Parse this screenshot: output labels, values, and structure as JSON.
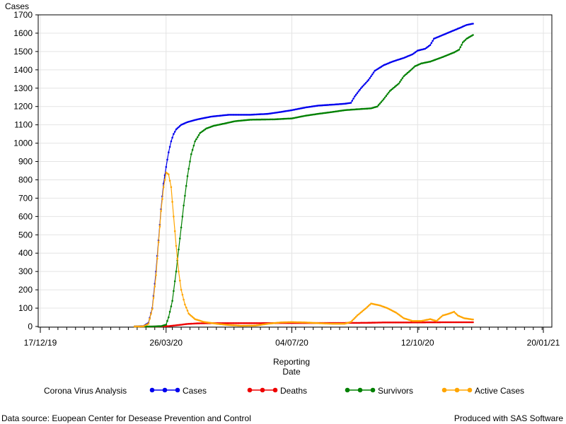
{
  "chart_data": {
    "type": "line",
    "ylabel": "Cases",
    "xlabel_line1": "Reporting",
    "xlabel_line2": "Date",
    "ylim": [
      0,
      1700
    ],
    "yticks": [
      0,
      100,
      200,
      300,
      400,
      500,
      600,
      700,
      800,
      900,
      1000,
      1100,
      1200,
      1300,
      1400,
      1500,
      1600,
      1700
    ],
    "xlim": [
      "2019-12-17",
      "2021-01-20"
    ],
    "xticks": [
      {
        "date": "2019-12-17",
        "label": "17/12/19"
      },
      {
        "date": "2020-03-26",
        "label": "26/03/20"
      },
      {
        "date": "2020-07-04",
        "label": "04/07/20"
      },
      {
        "date": "2020-10-12",
        "label": "12/10/20"
      },
      {
        "date": "2021-01-20",
        "label": "20/01/21"
      }
    ],
    "grid": true,
    "legend_title": "Corona Virus Analysis",
    "legend_position": "bottom",
    "series": [
      {
        "name": "Cases",
        "color": "#0000ee",
        "points": [
          [
            "2020-03-01",
            0
          ],
          [
            "2020-03-08",
            2
          ],
          [
            "2020-03-12",
            20
          ],
          [
            "2020-03-15",
            100
          ],
          [
            "2020-03-18",
            300
          ],
          [
            "2020-03-20",
            470
          ],
          [
            "2020-03-22",
            640
          ],
          [
            "2020-03-24",
            780
          ],
          [
            "2020-03-26",
            870
          ],
          [
            "2020-03-28",
            950
          ],
          [
            "2020-03-30",
            1010
          ],
          [
            "2020-04-01",
            1050
          ],
          [
            "2020-04-03",
            1075
          ],
          [
            "2020-04-07",
            1100
          ],
          [
            "2020-04-12",
            1115
          ],
          [
            "2020-04-20",
            1130
          ],
          [
            "2020-05-01",
            1145
          ],
          [
            "2020-05-15",
            1155
          ],
          [
            "2020-06-01",
            1155
          ],
          [
            "2020-06-15",
            1160
          ],
          [
            "2020-06-25",
            1170
          ],
          [
            "2020-07-04",
            1180
          ],
          [
            "2020-07-15",
            1195
          ],
          [
            "2020-07-25",
            1205
          ],
          [
            "2020-08-05",
            1210
          ],
          [
            "2020-08-15",
            1215
          ],
          [
            "2020-08-20",
            1220
          ],
          [
            "2020-08-23",
            1255
          ],
          [
            "2020-08-28",
            1300
          ],
          [
            "2020-09-03",
            1345
          ],
          [
            "2020-09-08",
            1395
          ],
          [
            "2020-09-15",
            1425
          ],
          [
            "2020-09-22",
            1445
          ],
          [
            "2020-10-01",
            1465
          ],
          [
            "2020-10-08",
            1485
          ],
          [
            "2020-10-12",
            1505
          ],
          [
            "2020-10-18",
            1515
          ],
          [
            "2020-10-22",
            1535
          ],
          [
            "2020-10-25",
            1570
          ],
          [
            "2020-11-01",
            1590
          ],
          [
            "2020-11-08",
            1610
          ],
          [
            "2020-11-15",
            1630
          ],
          [
            "2020-11-20",
            1645
          ],
          [
            "2020-11-25",
            1652
          ]
        ]
      },
      {
        "name": "Deaths",
        "color": "#ee0000",
        "points": [
          [
            "2020-03-01",
            0
          ],
          [
            "2020-03-20",
            0
          ],
          [
            "2020-03-28",
            2
          ],
          [
            "2020-04-05",
            8
          ],
          [
            "2020-04-12",
            14
          ],
          [
            "2020-04-20",
            17
          ],
          [
            "2020-05-01",
            18
          ],
          [
            "2020-06-01",
            18
          ],
          [
            "2020-07-01",
            19
          ],
          [
            "2020-08-01",
            19
          ],
          [
            "2020-09-01",
            20
          ],
          [
            "2020-09-15",
            22
          ],
          [
            "2020-10-01",
            22
          ],
          [
            "2020-11-01",
            23
          ],
          [
            "2020-11-25",
            23
          ]
        ]
      },
      {
        "name": "Survivors",
        "color": "#008000",
        "points": [
          [
            "2020-03-01",
            0
          ],
          [
            "2020-03-15",
            0
          ],
          [
            "2020-03-22",
            2
          ],
          [
            "2020-03-26",
            10
          ],
          [
            "2020-03-28",
            50
          ],
          [
            "2020-03-31",
            140
          ],
          [
            "2020-04-03",
            300
          ],
          [
            "2020-04-06",
            480
          ],
          [
            "2020-04-09",
            660
          ],
          [
            "2020-04-12",
            820
          ],
          [
            "2020-04-15",
            940
          ],
          [
            "2020-04-18",
            1010
          ],
          [
            "2020-04-22",
            1055
          ],
          [
            "2020-04-27",
            1080
          ],
          [
            "2020-05-03",
            1095
          ],
          [
            "2020-05-10",
            1105
          ],
          [
            "2020-05-20",
            1120
          ],
          [
            "2020-06-01",
            1128
          ],
          [
            "2020-06-20",
            1130
          ],
          [
            "2020-07-04",
            1135
          ],
          [
            "2020-07-15",
            1150
          ],
          [
            "2020-07-25",
            1160
          ],
          [
            "2020-08-05",
            1170
          ],
          [
            "2020-08-15",
            1180
          ],
          [
            "2020-08-25",
            1185
          ],
          [
            "2020-09-05",
            1190
          ],
          [
            "2020-09-10",
            1200
          ],
          [
            "2020-09-15",
            1240
          ],
          [
            "2020-09-20",
            1285
          ],
          [
            "2020-09-27",
            1325
          ],
          [
            "2020-10-01",
            1365
          ],
          [
            "2020-10-06",
            1395
          ],
          [
            "2020-10-10",
            1420
          ],
          [
            "2020-10-15",
            1435
          ],
          [
            "2020-10-22",
            1445
          ],
          [
            "2020-11-01",
            1470
          ],
          [
            "2020-11-10",
            1495
          ],
          [
            "2020-11-14",
            1510
          ],
          [
            "2020-11-17",
            1550
          ],
          [
            "2020-11-20",
            1570
          ],
          [
            "2020-11-25",
            1590
          ]
        ]
      },
      {
        "name": "Active Cases",
        "color": "#ffa500",
        "points": [
          [
            "2020-03-01",
            0
          ],
          [
            "2020-03-08",
            1
          ],
          [
            "2020-03-12",
            15
          ],
          [
            "2020-03-15",
            95
          ],
          [
            "2020-03-18",
            280
          ],
          [
            "2020-03-20",
            460
          ],
          [
            "2020-03-22",
            630
          ],
          [
            "2020-03-24",
            760
          ],
          [
            "2020-03-26",
            840
          ],
          [
            "2020-03-28",
            830
          ],
          [
            "2020-03-30",
            760
          ],
          [
            "2020-04-01",
            600
          ],
          [
            "2020-04-03",
            440
          ],
          [
            "2020-04-05",
            300
          ],
          [
            "2020-04-07",
            200
          ],
          [
            "2020-04-10",
            120
          ],
          [
            "2020-04-13",
            70
          ],
          [
            "2020-04-18",
            40
          ],
          [
            "2020-04-25",
            25
          ],
          [
            "2020-05-05",
            15
          ],
          [
            "2020-05-15",
            8
          ],
          [
            "2020-05-25",
            4
          ],
          [
            "2020-06-05",
            5
          ],
          [
            "2020-06-15",
            15
          ],
          [
            "2020-06-25",
            22
          ],
          [
            "2020-07-04",
            24
          ],
          [
            "2020-07-15",
            22
          ],
          [
            "2020-07-25",
            18
          ],
          [
            "2020-08-05",
            15
          ],
          [
            "2020-08-15",
            15
          ],
          [
            "2020-08-20",
            25
          ],
          [
            "2020-08-25",
            60
          ],
          [
            "2020-09-01",
            100
          ],
          [
            "2020-09-05",
            125
          ],
          [
            "2020-09-12",
            115
          ],
          [
            "2020-09-18",
            100
          ],
          [
            "2020-09-25",
            75
          ],
          [
            "2020-10-01",
            45
          ],
          [
            "2020-10-08",
            30
          ],
          [
            "2020-10-15",
            30
          ],
          [
            "2020-10-22",
            40
          ],
          [
            "2020-10-27",
            30
          ],
          [
            "2020-11-01",
            60
          ],
          [
            "2020-11-06",
            70
          ],
          [
            "2020-11-10",
            80
          ],
          [
            "2020-11-13",
            60
          ],
          [
            "2020-11-18",
            45
          ],
          [
            "2020-11-25",
            38
          ]
        ]
      }
    ]
  },
  "footer": {
    "source": "Data source: Euopean Center for Desease Prevention and Control",
    "produced": "Produced with SAS Software"
  }
}
